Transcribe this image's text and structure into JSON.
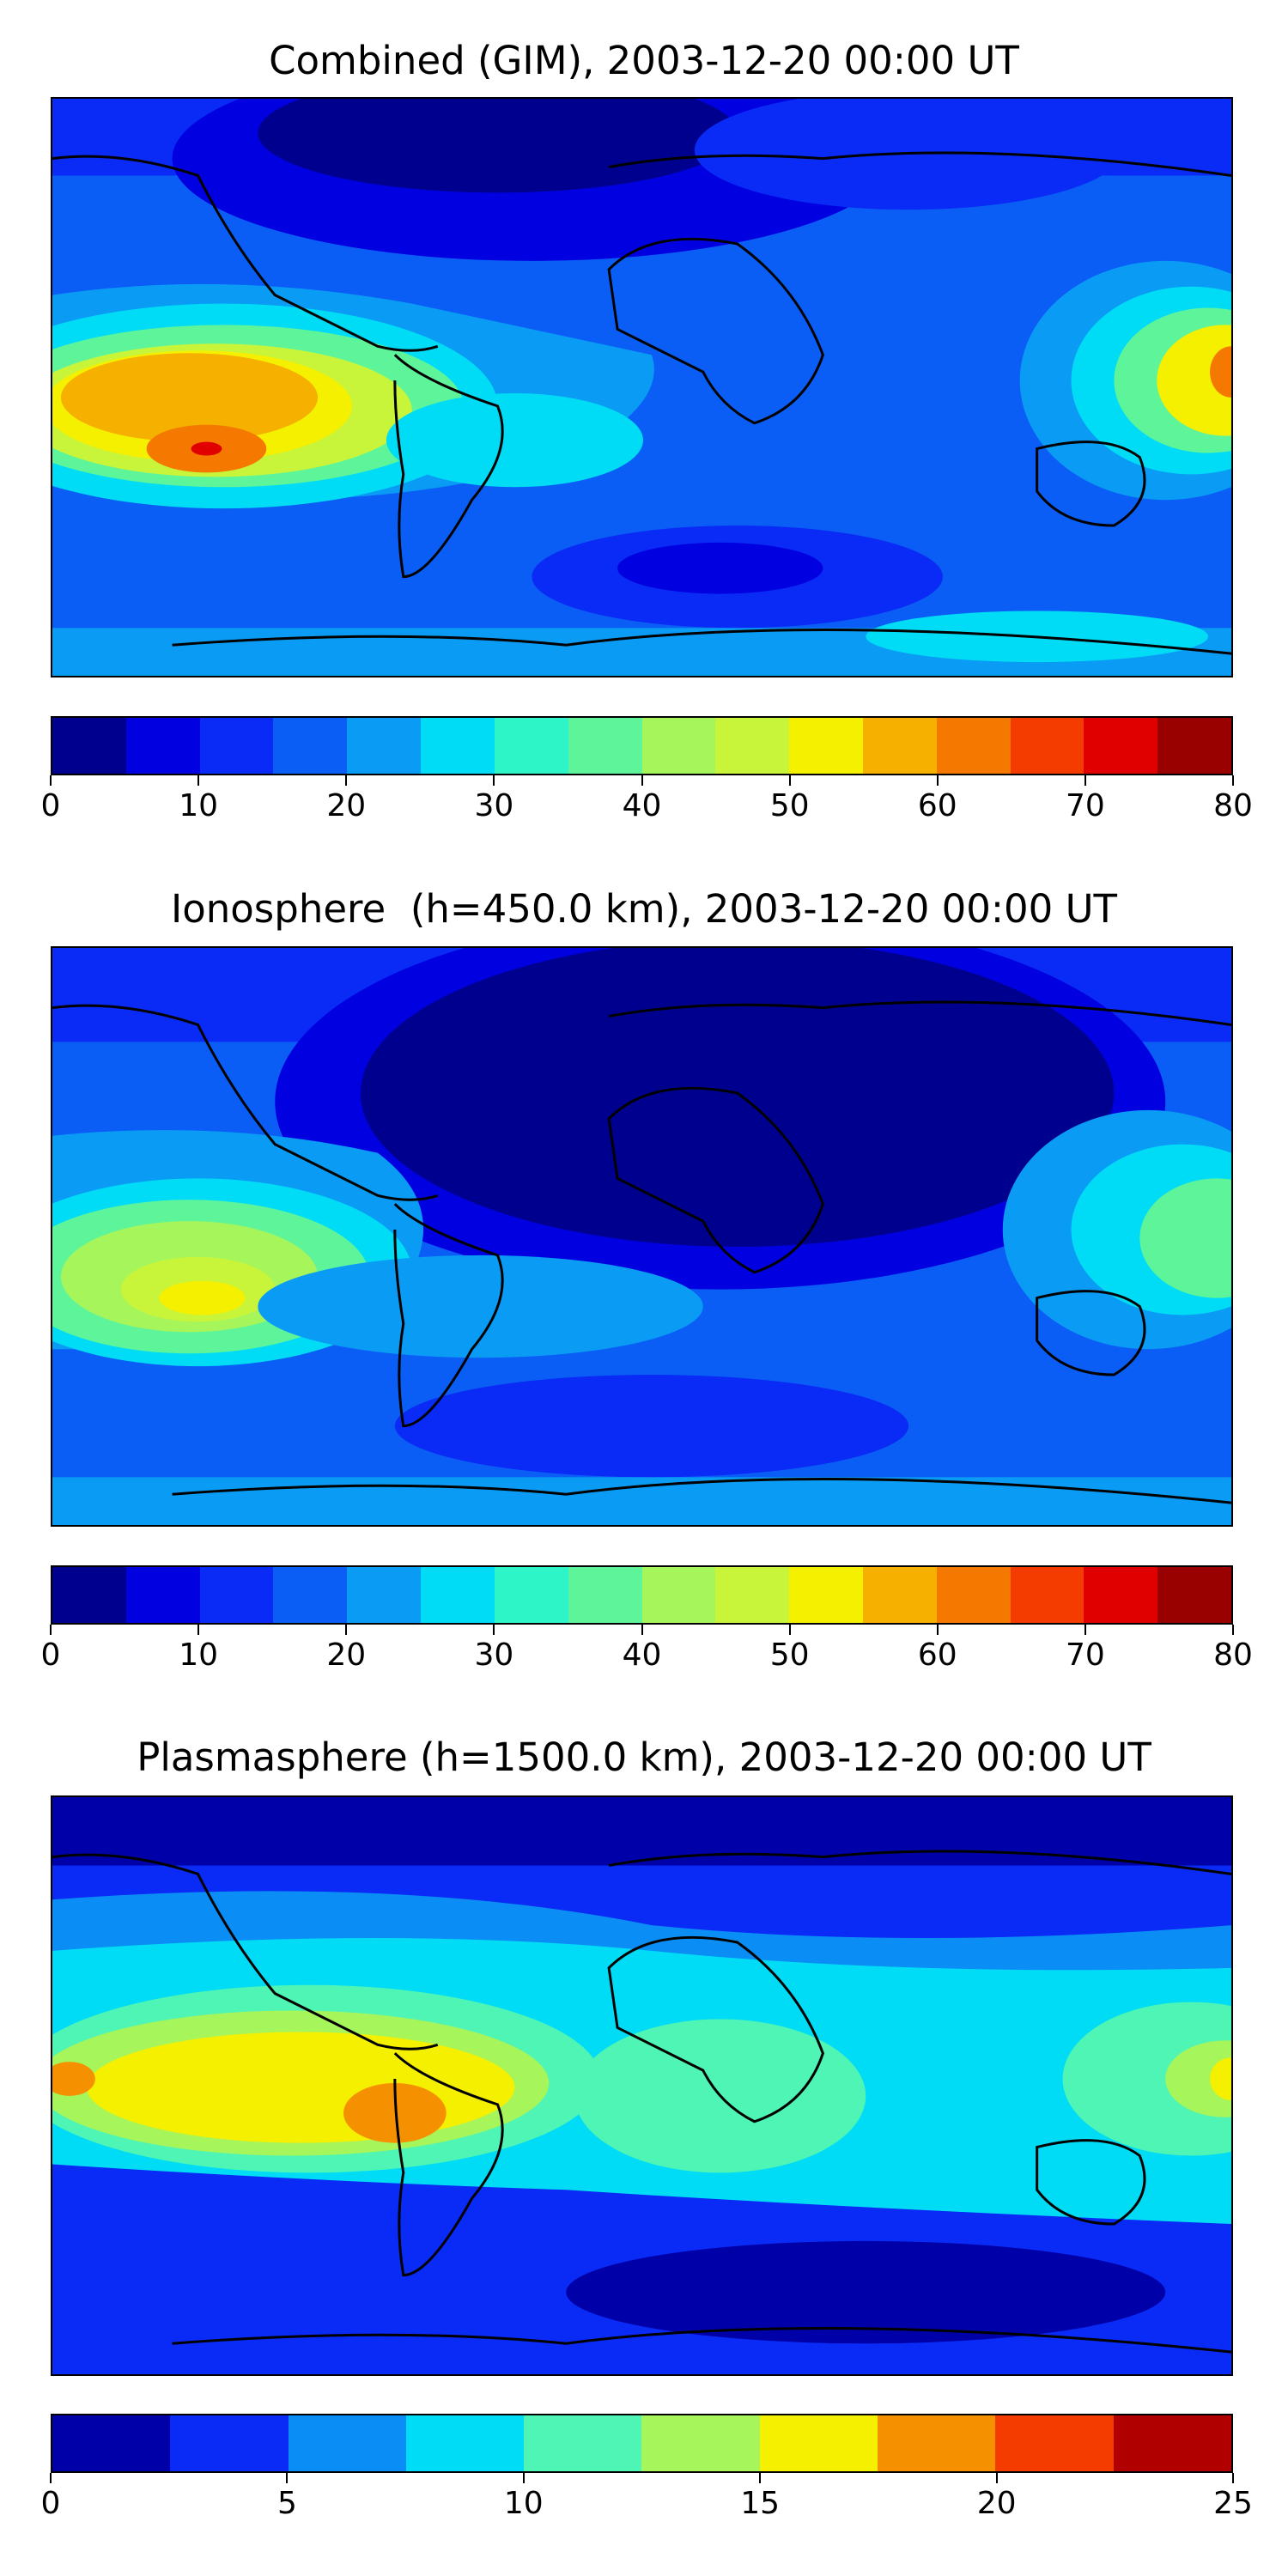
{
  "panels": [
    {
      "title": "Combined (GIM), 2003-12-20 00:00 UT",
      "colorbar": {
        "colors": [
          "#00008f",
          "#0000e0",
          "#0a2af5",
          "#0b5ef5",
          "#0a9bf5",
          "#00dcf5",
          "#2ef5c8",
          "#5ef59a",
          "#a6f55a",
          "#c8f53a",
          "#f5f000",
          "#f5b000",
          "#f57800",
          "#f53c00",
          "#e00000",
          "#990000"
        ],
        "ticks": [
          "0",
          "10",
          "20",
          "30",
          "40",
          "50",
          "60",
          "70",
          "80"
        ]
      }
    },
    {
      "title": "Ionosphere  (h=450.0 km), 2003-12-20 00:00 UT",
      "colorbar": {
        "colors": [
          "#00008f",
          "#0000e0",
          "#0a2af5",
          "#0b5ef5",
          "#0a9bf5",
          "#00dcf5",
          "#2ef5c8",
          "#5ef59a",
          "#a6f55a",
          "#c8f53a",
          "#f5f000",
          "#f5b000",
          "#f57800",
          "#f53c00",
          "#e00000",
          "#990000"
        ],
        "ticks": [
          "0",
          "10",
          "20",
          "30",
          "40",
          "50",
          "60",
          "70",
          "80"
        ]
      }
    },
    {
      "title": "Plasmasphere (h=1500.0 km), 2003-12-20 00:00 UT",
      "colorbar": {
        "colors": [
          "#0000a8",
          "#0a2af5",
          "#0a8ef5",
          "#00dcf5",
          "#4ef5b4",
          "#a6f55a",
          "#f5f000",
          "#f59000",
          "#f53c00",
          "#b00000"
        ],
        "ticks": [
          "0",
          "5",
          "10",
          "15",
          "20",
          "25"
        ]
      }
    }
  ]
}
